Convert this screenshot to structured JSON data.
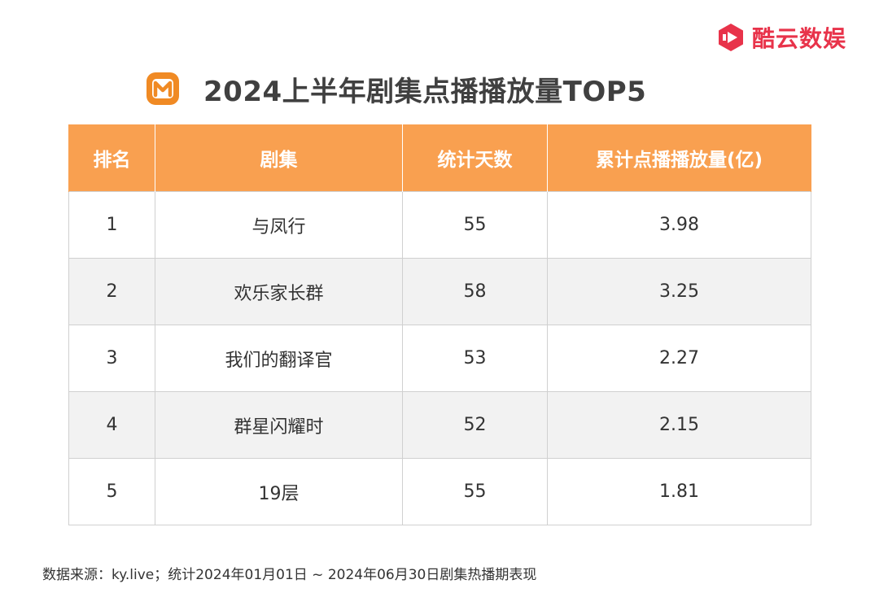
{
  "brand": {
    "name": "酷云数娱"
  },
  "header": {
    "title": "2024上半年剧集点播播放量TOP5"
  },
  "table": {
    "columns": [
      "排名",
      "剧集",
      "统计天数",
      "累计点播播放量(亿)"
    ],
    "rows": [
      {
        "rank": "1",
        "title": "与凤行",
        "days": "55",
        "views": "3.98"
      },
      {
        "rank": "2",
        "title": "欢乐家长群",
        "days": "58",
        "views": "3.25"
      },
      {
        "rank": "3",
        "title": "我们的翻译官",
        "days": "53",
        "views": "2.27"
      },
      {
        "rank": "4",
        "title": "群星闪耀时",
        "days": "52",
        "views": "2.15"
      },
      {
        "rank": "5",
        "title": "19层",
        "days": "55",
        "views": "1.81"
      }
    ]
  },
  "footer": {
    "source": "数据来源：ky.live；统计2024年01月01日 ~ 2024年06月30日剧集热播期表现"
  },
  "colors": {
    "header_bg": "#f9a050",
    "brand_red": "#e8334a",
    "logo_orange": "#f08a24",
    "row_alt": "#f2f2f2"
  },
  "icons": {
    "brand": "kuyun-play-icon",
    "platform": "mango-tv-logo-icon"
  }
}
